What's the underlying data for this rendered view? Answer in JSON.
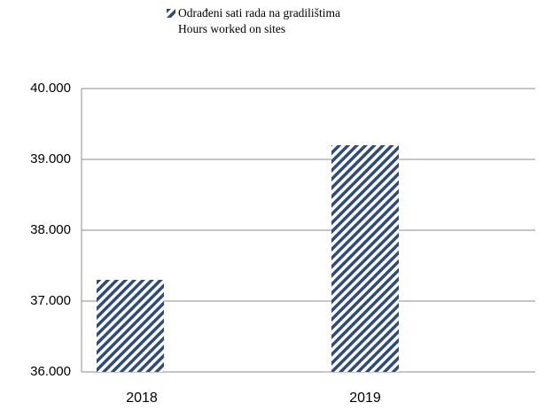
{
  "chart_data": {
    "type": "bar",
    "categories": [
      "2018",
      "2019"
    ],
    "series": [
      {
        "name": "Odrađeni sati rada na gradilištima\nHours worked on sites",
        "color": "#2f4b7c",
        "values": [
          37300,
          39200
        ]
      }
    ],
    "ylim": [
      36000,
      40000
    ],
    "yticks": [
      {
        "value": 36000,
        "label": "36.000"
      },
      {
        "value": 37000,
        "label": "37.000"
      },
      {
        "value": 38000,
        "label": "38.000"
      },
      {
        "value": 39000,
        "label": "39.000"
      },
      {
        "value": 40000,
        "label": "40.000"
      }
    ],
    "grid": true,
    "legend": "top"
  }
}
